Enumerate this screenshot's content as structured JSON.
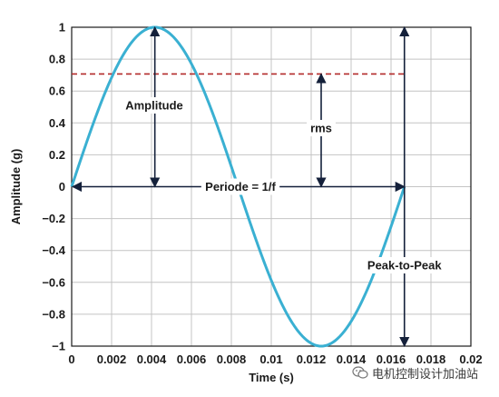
{
  "chart_data": {
    "type": "line",
    "xlabel": "Time (s)",
    "ylabel": "Amplitude (g)",
    "xlim": [
      0,
      0.02
    ],
    "ylim": [
      -1,
      1
    ],
    "x_ticks": [
      "0",
      "0.002",
      "0.004",
      "0.006",
      "0.008",
      "0.01",
      "0.012",
      "0.014",
      "0.016",
      "0.018",
      "0.02"
    ],
    "y_ticks": [
      "1",
      "0.8",
      "0.6",
      "0.4",
      "0.2",
      "0",
      "−0.2",
      "−0.4",
      "−0.6",
      "−0.8",
      "−1"
    ],
    "grid": true,
    "series": [
      {
        "function": "sine",
        "amplitude": 1,
        "period": 0.01667,
        "x_start": 0,
        "x_end": 0.01667,
        "color": "#3ab0d2"
      }
    ],
    "rms_level": 0.707,
    "rms_color": "#b32a2a",
    "annotations": {
      "amplitude": "Amplitude",
      "rms": "rms",
      "period": "Periode = 1/f",
      "peak_to_peak": "Peak-to-Peak"
    }
  },
  "watermark": {
    "text": "电机控制设计加油站",
    "icon": "wechat-icon"
  }
}
